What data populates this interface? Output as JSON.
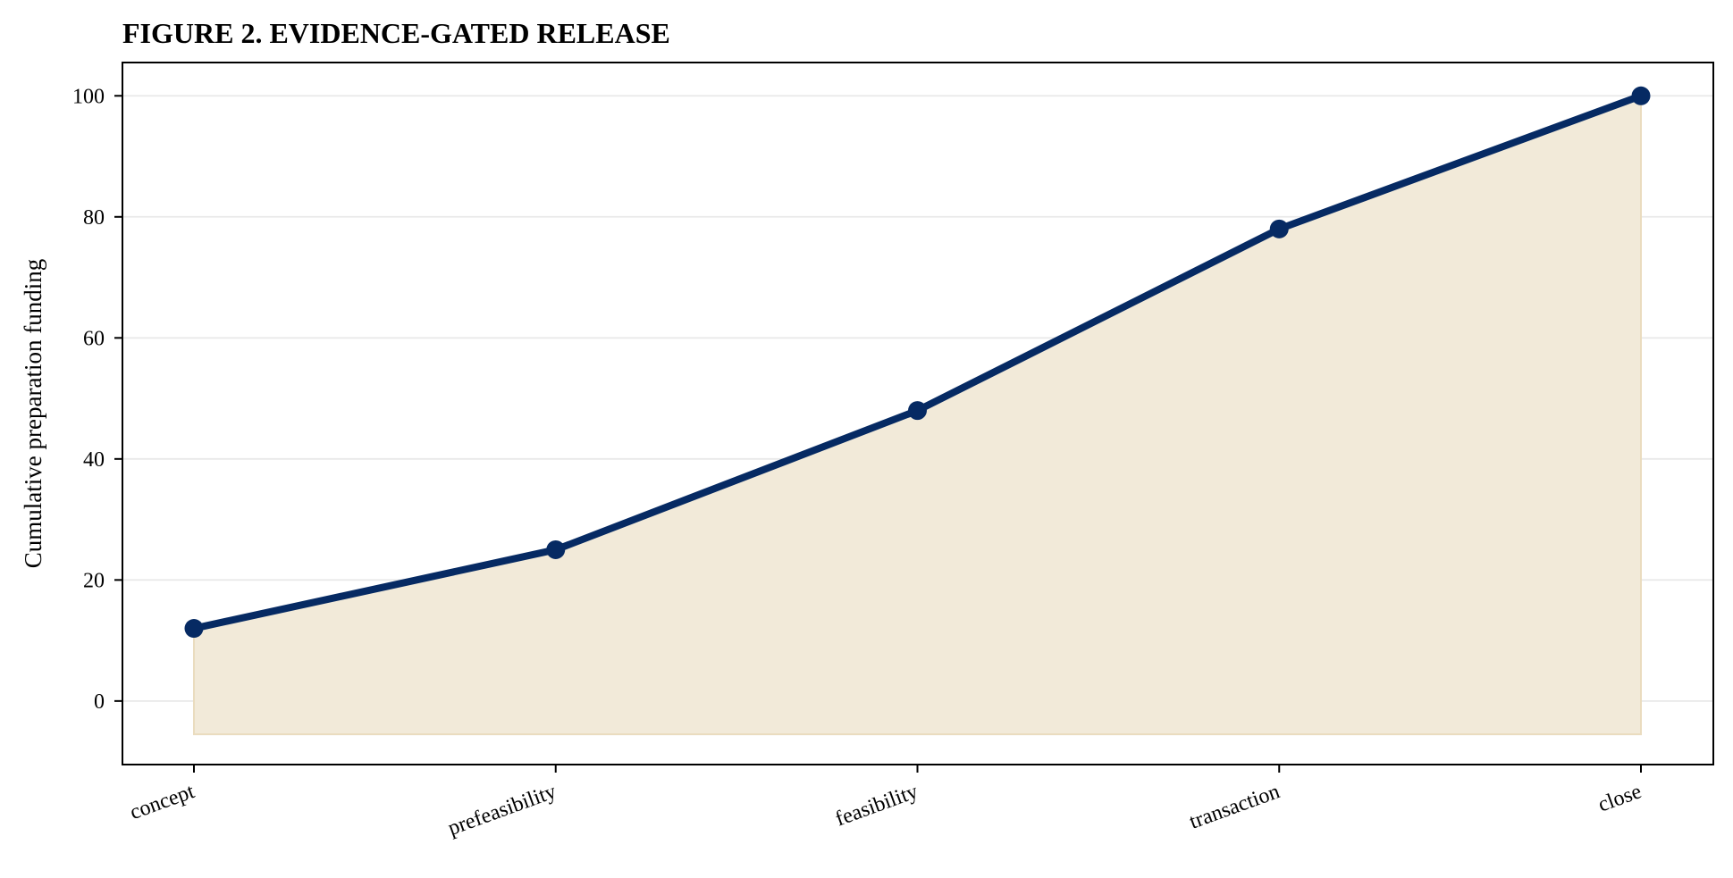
{
  "chart_data": {
    "type": "area",
    "title": "FIGURE 2. EVIDENCE-GATED RELEASE",
    "xlabel": "",
    "ylabel": "Cumulative preparation funding",
    "categories": [
      "concept",
      "prefeasibility",
      "feasibility",
      "transaction",
      "close"
    ],
    "series": [
      {
        "values": [
          12,
          25,
          48,
          78,
          100
        ]
      }
    ],
    "fill_baseline": -5.5,
    "ylim": [
      -10.5,
      105.5
    ],
    "yticks": [
      0,
      20,
      40,
      60,
      80,
      100
    ],
    "grid": "horizontal",
    "colors": {
      "line": "#062a63",
      "fill": "#f2ead9",
      "fill_edge": "#eadcbf",
      "grid": "#e9e9e9"
    }
  }
}
